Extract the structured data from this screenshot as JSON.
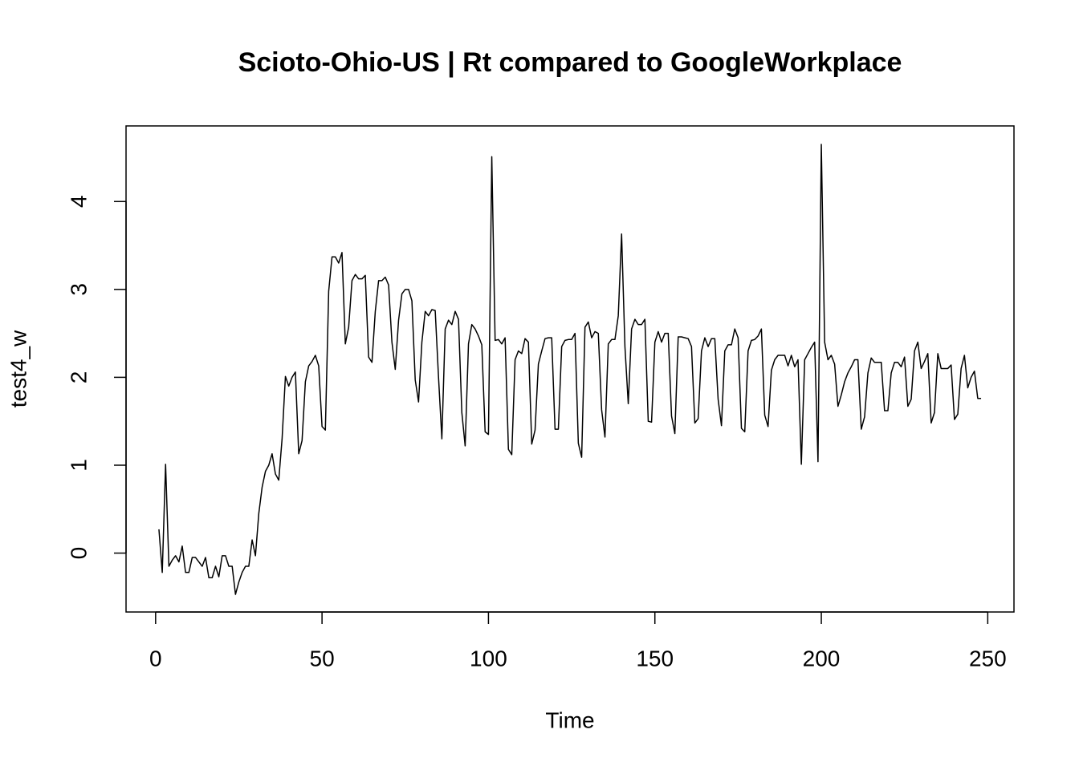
{
  "chart_data": {
    "type": "line",
    "title": "Scioto-Ohio-US | Rt compared to GoogleWorkplace",
    "x_label": "Time",
    "y_label": "test4_w",
    "x": [
      1,
      2,
      3,
      4,
      5,
      6,
      7,
      8,
      9,
      10,
      11,
      12,
      13,
      14,
      15,
      16,
      17,
      18,
      19,
      20,
      21,
      22,
      23,
      24,
      25,
      26,
      27,
      28,
      29,
      30,
      31,
      32,
      33,
      34,
      35,
      36,
      37,
      38,
      39,
      40,
      41,
      42,
      43,
      44,
      45,
      46,
      47,
      48,
      49,
      50,
      51,
      52,
      53,
      54,
      55,
      56,
      57,
      58,
      59,
      60,
      61,
      62,
      63,
      64,
      65,
      66,
      67,
      68,
      69,
      70,
      71,
      72,
      73,
      74,
      75,
      76,
      77,
      78,
      79,
      80,
      81,
      82,
      83,
      84,
      85,
      86,
      87,
      88,
      89,
      90,
      91,
      92,
      93,
      94,
      95,
      96,
      97,
      98,
      99,
      100,
      101,
      102,
      103,
      104,
      105,
      106,
      107,
      108,
      109,
      110,
      111,
      112,
      113,
      114,
      115,
      116,
      117,
      118,
      119,
      120,
      121,
      122,
      123,
      124,
      125,
      126,
      127,
      128,
      129,
      130,
      131,
      132,
      133,
      134,
      135,
      136,
      137,
      138,
      139,
      140,
      141,
      142,
      143,
      144,
      145,
      146,
      147,
      148,
      149,
      150,
      151,
      152,
      153,
      154,
      155,
      156,
      157,
      158,
      159,
      160,
      161,
      162,
      163,
      164,
      165,
      166,
      167,
      168,
      169,
      170,
      171,
      172,
      173,
      174,
      175,
      176,
      177,
      178,
      179,
      180,
      181,
      182,
      183,
      184,
      185,
      186,
      187,
      188,
      189,
      190,
      191,
      192,
      193,
      194,
      195,
      196,
      197,
      198,
      199,
      200,
      201,
      202,
      203,
      204,
      205,
      206,
      207,
      208,
      209,
      210,
      211,
      212,
      213,
      214,
      215,
      216,
      217,
      218,
      219,
      220,
      221,
      222,
      223,
      224,
      225,
      226,
      227,
      228,
      229,
      230,
      231,
      232,
      233,
      234,
      235,
      236,
      237,
      238,
      239,
      240,
      241,
      242,
      243,
      244,
      245,
      246,
      247,
      248
    ],
    "series": [
      {
        "name": "test4_w",
        "color": "#000000",
        "values": [
          0.27,
          -0.22,
          1.01,
          -0.15,
          -0.08,
          -0.03,
          -0.1,
          0.08,
          -0.22,
          -0.22,
          -0.05,
          -0.05,
          -0.1,
          -0.15,
          -0.05,
          -0.28,
          -0.28,
          -0.15,
          -0.27,
          -0.03,
          -0.03,
          -0.15,
          -0.15,
          -0.47,
          -0.33,
          -0.22,
          -0.15,
          -0.15,
          0.15,
          -0.03,
          0.45,
          0.75,
          0.93,
          1.0,
          1.13,
          0.9,
          0.83,
          1.3,
          2.01,
          1.9,
          2.0,
          2.06,
          1.13,
          1.28,
          1.95,
          2.13,
          2.18,
          2.25,
          2.13,
          1.44,
          1.4,
          2.98,
          3.37,
          3.37,
          3.3,
          3.42,
          2.38,
          2.57,
          3.1,
          3.17,
          3.12,
          3.12,
          3.16,
          2.23,
          2.17,
          2.75,
          3.1,
          3.1,
          3.14,
          3.05,
          2.4,
          2.09,
          2.65,
          2.95,
          3.0,
          3.0,
          2.87,
          1.97,
          1.72,
          2.4,
          2.75,
          2.7,
          2.77,
          2.76,
          2.0,
          1.3,
          2.55,
          2.65,
          2.6,
          2.75,
          2.66,
          1.6,
          1.22,
          2.38,
          2.6,
          2.55,
          2.47,
          2.37,
          1.38,
          1.35,
          4.51,
          2.42,
          2.43,
          2.38,
          2.45,
          1.18,
          1.12,
          2.2,
          2.3,
          2.27,
          2.44,
          2.4,
          1.24,
          1.4,
          2.15,
          2.3,
          2.44,
          2.45,
          2.45,
          1.41,
          1.41,
          2.35,
          2.42,
          2.43,
          2.43,
          2.5,
          1.25,
          1.09,
          2.57,
          2.63,
          2.45,
          2.52,
          2.5,
          1.63,
          1.32,
          2.38,
          2.43,
          2.43,
          2.7,
          3.63,
          2.35,
          1.7,
          2.55,
          2.66,
          2.6,
          2.6,
          2.66,
          1.5,
          1.49,
          2.4,
          2.52,
          2.4,
          2.5,
          2.5,
          1.56,
          1.36,
          2.46,
          2.46,
          2.45,
          2.44,
          2.35,
          1.48,
          1.53,
          2.3,
          2.45,
          2.35,
          2.44,
          2.44,
          1.75,
          1.45,
          2.3,
          2.37,
          2.37,
          2.55,
          2.45,
          1.42,
          1.38,
          2.3,
          2.42,
          2.43,
          2.47,
          2.55,
          1.57,
          1.44,
          2.08,
          2.2,
          2.25,
          2.25,
          2.25,
          2.13,
          2.25,
          2.12,
          2.2,
          1.01,
          2.2,
          2.27,
          2.34,
          2.4,
          1.04,
          4.65,
          2.4,
          2.2,
          2.25,
          2.15,
          1.67,
          1.8,
          1.95,
          2.05,
          2.12,
          2.2,
          2.2,
          1.41,
          1.55,
          2.05,
          2.22,
          2.17,
          2.17,
          2.17,
          1.62,
          1.62,
          2.05,
          2.17,
          2.17,
          2.12,
          2.23,
          1.67,
          1.75,
          2.3,
          2.4,
          2.1,
          2.18,
          2.27,
          1.48,
          1.6,
          2.27,
          2.1,
          2.1,
          2.1,
          2.14,
          1.52,
          1.58,
          2.1,
          2.25,
          1.88,
          2.0,
          2.07,
          1.76,
          1.76
        ]
      }
    ],
    "xlim": [
      -8.88,
      257.88
    ],
    "xticks": [
      0,
      50,
      100,
      150,
      200,
      250
    ],
    "ylim": [
      -0.67,
      4.86
    ],
    "yticks": [
      0,
      1,
      2,
      3,
      4
    ],
    "grid": false
  }
}
